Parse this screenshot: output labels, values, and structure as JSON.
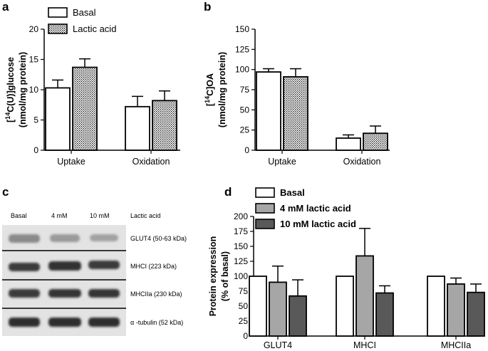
{
  "panels": {
    "a": "a",
    "b": "b",
    "c": "c",
    "d": "d"
  },
  "blot": {
    "columns": [
      "Basal",
      "4 mM",
      "10 mM"
    ],
    "header_right": "Lactic acid",
    "rows": [
      "GLUT4 (50-63 kDa)",
      "MHCI (223 kDa)",
      "MHCIIa (230 kDa)",
      "α -tubulin (52 kDa)"
    ]
  },
  "chart_data": [
    {
      "id": "a",
      "type": "bar",
      "categories": [
        "Uptake",
        "Oxidation"
      ],
      "series": [
        {
          "name": "Basal",
          "values": [
            10.3,
            7.2
          ],
          "errors": [
            1.3,
            1.7
          ],
          "fill": "white"
        },
        {
          "name": "Lactic acid",
          "values": [
            13.7,
            8.2
          ],
          "errors": [
            1.4,
            1.6
          ],
          "fill": "dotted"
        }
      ],
      "ylabel_line1": "[14C(U)]glucose",
      "ylabel_line2": "(nmol/mg protein)",
      "ylim": [
        0,
        20
      ],
      "yticks": [
        "0",
        "5",
        "10",
        "15",
        "20"
      ],
      "legend": "top-left"
    },
    {
      "id": "b",
      "type": "bar",
      "categories": [
        "Uptake",
        "Oxidation"
      ],
      "series": [
        {
          "name": "Basal",
          "values": [
            97,
            15
          ],
          "errors": [
            4,
            4
          ],
          "fill": "white"
        },
        {
          "name": "Lactic acid",
          "values": [
            91,
            21
          ],
          "errors": [
            10,
            9
          ],
          "fill": "dotted"
        }
      ],
      "ylabel_line1": "[14C]OA",
      "ylabel_line2": "(nmol/mg protein)",
      "ylim": [
        0,
        150
      ],
      "yticks": [
        "0",
        "25",
        "50",
        "75",
        "100",
        "125",
        "150"
      ]
    },
    {
      "id": "d",
      "type": "bar",
      "categories": [
        "GLUT4",
        "MHCI",
        "MHCIIa"
      ],
      "series": [
        {
          "name": "Basal",
          "values": [
            100,
            100,
            100
          ],
          "errors": [
            0,
            0,
            0
          ],
          "fill": "#ffffff"
        },
        {
          "name": "4 mM lactic acid",
          "values": [
            90,
            134,
            87
          ],
          "errors": [
            27,
            46,
            10
          ],
          "fill": "#a6a6a6"
        },
        {
          "name": "10 mM lactic acid",
          "values": [
            67,
            72,
            73
          ],
          "errors": [
            27,
            12,
            14
          ],
          "fill": "#595959"
        }
      ],
      "ylabel_line1": "Protein expression",
      "ylabel_line2": "(% of basal)",
      "ylim": [
        0,
        200
      ],
      "yticks": [
        "0",
        "25",
        "50",
        "75",
        "100",
        "125",
        "150",
        "175",
        "200"
      ],
      "legend": "top-left"
    }
  ]
}
